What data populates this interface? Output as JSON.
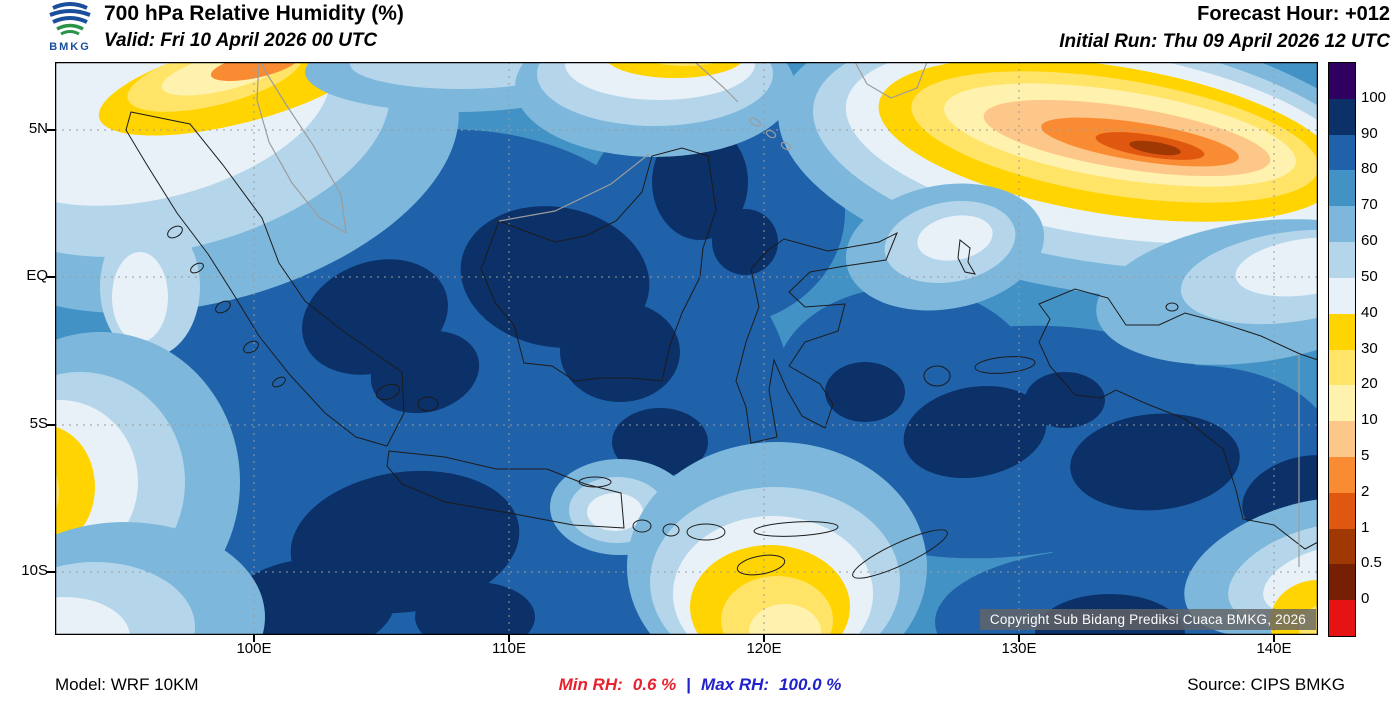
{
  "header": {
    "logo_text": "BMKG",
    "title": "700 hPa Relative Humidity (%)",
    "valid": "Valid: Fri 10 April 2026 00 UTC",
    "forecast_hour": "Forecast Hour: +012",
    "initial_run": "Initial Run: Thu 09 April 2026 12 UTC"
  },
  "map": {
    "lat_labels": [
      "5N",
      "EQ",
      "5S",
      "10S"
    ],
    "lon_labels": [
      "100E",
      "110E",
      "120E",
      "130E",
      "140E"
    ],
    "copyright": "Copyright Sub Bidang Prediksi Cuaca BMKG, 2026"
  },
  "legend": {
    "title": "Relative Humidity (%)",
    "labels": [
      "100",
      "90",
      "80",
      "70",
      "60",
      "50",
      "40",
      "30",
      "20",
      "10",
      "5",
      "2",
      "1",
      "0.5",
      "0"
    ],
    "colors": [
      "#2f0060",
      "#0c3068",
      "#1f62aa",
      "#4292c6",
      "#7db8dc",
      "#b5d6ea",
      "#e8f1f8",
      "#ffd400",
      "#ffe468",
      "#fff2ae",
      "#fdc789",
      "#f98b33",
      "#e0570f",
      "#a03804",
      "#751f04",
      "#e51313"
    ]
  },
  "footer": {
    "model": "Model: WRF 10KM",
    "min_rh_label": "Min RH:",
    "min_rh_value": "0.6 %",
    "separator": "|",
    "max_rh_label": "Max RH:",
    "max_rh_value": "100.0 %",
    "source": "Source: CIPS BMKG"
  },
  "colors": {
    "min_rh": "#e8212e",
    "max_rh": "#2222cc"
  }
}
